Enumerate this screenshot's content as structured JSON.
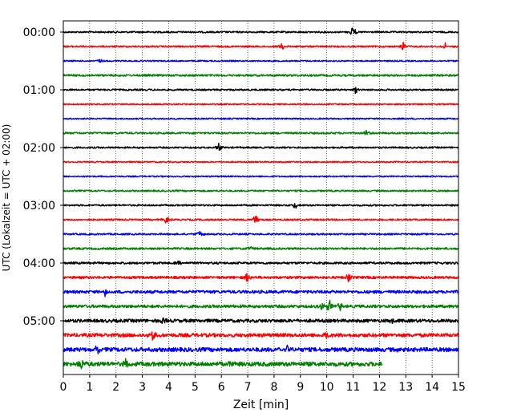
{
  "chart_data": {
    "type": "line",
    "title": "",
    "xlabel": "Zeit  [min]",
    "ylabel": "UTC (Lokalzeit = UTC + 02:00)",
    "xlim": [
      0,
      15
    ],
    "x_ticks": [
      "0",
      "1",
      "2",
      "3",
      "4",
      "5",
      "6",
      "7",
      "8",
      "9",
      "10",
      "11",
      "12",
      "13",
      "14",
      "15"
    ],
    "y_ticks": [
      "00:00",
      "01:00",
      "02:00",
      "03:00",
      "04:00",
      "05:00"
    ],
    "trace_interval_min": 15,
    "grid": "vertical dotted",
    "colors": [
      "#000000",
      "#ff0000",
      "#0000ff",
      "#008000"
    ],
    "series": [
      {
        "start": "00:00",
        "color": "#000000",
        "noise": 1.0,
        "events": [
          {
            "t": 11.0,
            "amp": 9
          }
        ]
      },
      {
        "start": "00:15",
        "color": "#ff0000",
        "noise": 1.0,
        "events": [
          {
            "t": 8.3,
            "amp": 5
          },
          {
            "t": 12.9,
            "amp": 6
          },
          {
            "t": 14.5,
            "amp": 4
          }
        ]
      },
      {
        "start": "00:30",
        "color": "#0000ff",
        "noise": 0.8,
        "events": [
          {
            "t": 1.4,
            "amp": 3
          }
        ]
      },
      {
        "start": "00:45",
        "color": "#008000",
        "noise": 1.2,
        "events": []
      },
      {
        "start": "01:00",
        "color": "#000000",
        "noise": 1.0,
        "events": [
          {
            "t": 11.1,
            "amp": 6
          }
        ]
      },
      {
        "start": "01:15",
        "color": "#ff0000",
        "noise": 0.8,
        "events": []
      },
      {
        "start": "01:30",
        "color": "#0000ff",
        "noise": 0.8,
        "events": []
      },
      {
        "start": "01:45",
        "color": "#008000",
        "noise": 1.1,
        "events": [
          {
            "t": 11.5,
            "amp": 4
          }
        ]
      },
      {
        "start": "02:00",
        "color": "#000000",
        "noise": 1.0,
        "events": [
          {
            "t": 5.9,
            "amp": 6
          }
        ]
      },
      {
        "start": "02:15",
        "color": "#ff0000",
        "noise": 0.8,
        "events": []
      },
      {
        "start": "02:30",
        "color": "#0000ff",
        "noise": 0.8,
        "events": []
      },
      {
        "start": "02:45",
        "color": "#008000",
        "noise": 1.0,
        "events": []
      },
      {
        "start": "03:00",
        "color": "#000000",
        "noise": 1.0,
        "events": [
          {
            "t": 8.8,
            "amp": 5
          }
        ]
      },
      {
        "start": "03:15",
        "color": "#ff0000",
        "noise": 1.0,
        "events": [
          {
            "t": 3.9,
            "amp": 6
          },
          {
            "t": 7.3,
            "amp": 9
          }
        ]
      },
      {
        "start": "03:30",
        "color": "#0000ff",
        "noise": 1.0,
        "events": [
          {
            "t": 5.2,
            "amp": 6
          }
        ]
      },
      {
        "start": "03:45",
        "color": "#008000",
        "noise": 1.2,
        "events": [
          {
            "t": 7.1,
            "amp": 3
          }
        ]
      },
      {
        "start": "04:00",
        "color": "#000000",
        "noise": 1.3,
        "events": [
          {
            "t": 4.4,
            "amp": 3
          }
        ]
      },
      {
        "start": "04:15",
        "color": "#ff0000",
        "noise": 1.5,
        "events": [
          {
            "t": 7.0,
            "amp": 8
          },
          {
            "t": 10.8,
            "amp": 7
          }
        ]
      },
      {
        "start": "04:30",
        "color": "#0000ff",
        "noise": 1.8,
        "events": [
          {
            "t": 1.6,
            "amp": 6
          }
        ]
      },
      {
        "start": "04:45",
        "color": "#008000",
        "noise": 1.8,
        "events": [
          {
            "t": 9.8,
            "amp": 7
          },
          {
            "t": 10.1,
            "amp": 9
          },
          {
            "t": 10.5,
            "amp": 6
          }
        ]
      },
      {
        "start": "05:00",
        "color": "#000000",
        "noise": 2.0,
        "events": [
          {
            "t": 3.8,
            "amp": 5
          },
          {
            "t": 12.5,
            "amp": 9
          }
        ]
      },
      {
        "start": "05:15",
        "color": "#ff0000",
        "noise": 2.2,
        "events": [
          {
            "t": 3.4,
            "amp": 9
          },
          {
            "t": 10.0,
            "amp": 6
          }
        ]
      },
      {
        "start": "05:30",
        "color": "#0000ff",
        "noise": 2.5,
        "events": [
          {
            "t": 1.3,
            "amp": 7
          },
          {
            "t": 8.5,
            "amp": 7
          },
          {
            "t": 12.8,
            "amp": 4
          }
        ]
      },
      {
        "start": "05:45",
        "color": "#008000",
        "noise": 2.6,
        "events": [
          {
            "t": 0.7,
            "amp": 7
          },
          {
            "t": 2.4,
            "amp": 8
          },
          {
            "t": 6.3,
            "amp": 7
          }
        ],
        "end_min": 12.1
      }
    ]
  }
}
